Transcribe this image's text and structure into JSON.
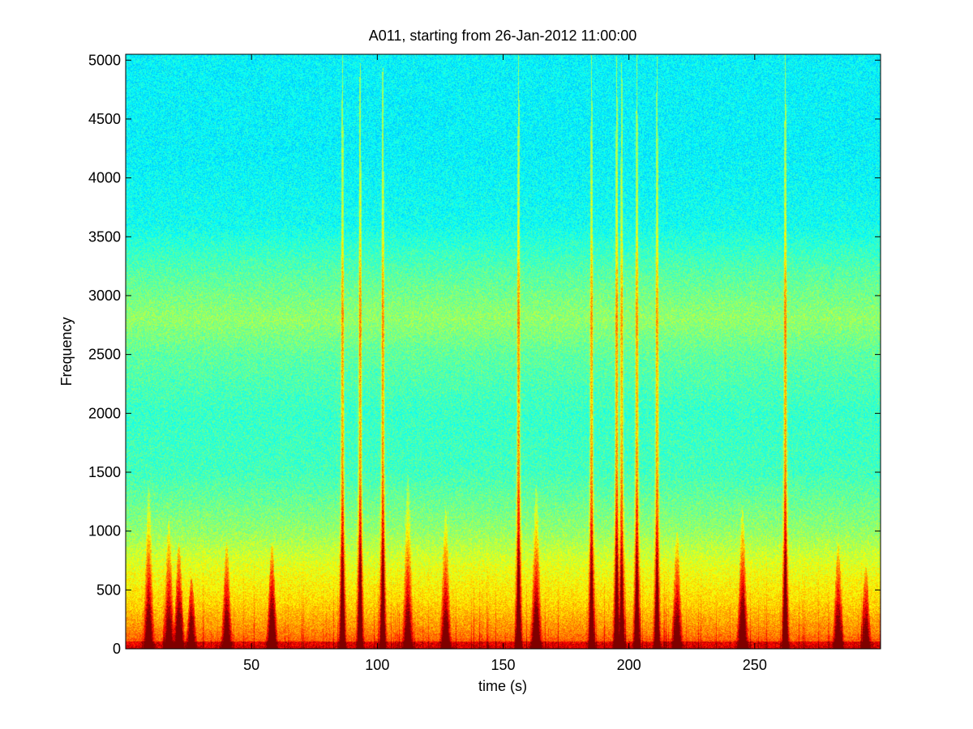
{
  "chart_data": {
    "type": "heatmap",
    "title": "A011, starting from 26-Jan-2012 11:00:00",
    "xlabel": "time (s)",
    "ylabel": "Frequency",
    "xlim": [
      0,
      300
    ],
    "ylim": [
      0,
      5050
    ],
    "x_ticks": [
      50,
      100,
      150,
      200,
      250
    ],
    "x_tick_labels": [
      "50",
      "100",
      "150",
      "200",
      "250"
    ],
    "y_ticks": [
      0,
      500,
      1000,
      1500,
      2000,
      2500,
      3000,
      3500,
      4000,
      4500,
      5000
    ],
    "y_tick_labels": [
      "0",
      "500",
      "1000",
      "1500",
      "2000",
      "2500",
      "3000",
      "3500",
      "4000",
      "4500",
      "5000"
    ],
    "colormap": [
      "#00007f",
      "#0000ff",
      "#007fff",
      "#00ffff",
      "#7fff7f",
      "#ffff00",
      "#ff7f00",
      "#ff0000",
      "#7f0000"
    ],
    "background_levels": [
      {
        "frequency": 0,
        "intensity": 0.82
      },
      {
        "frequency": 150,
        "intensity": 0.74
      },
      {
        "frequency": 400,
        "intensity": 0.66
      },
      {
        "frequency": 700,
        "intensity": 0.6
      },
      {
        "frequency": 1000,
        "intensity": 0.52
      },
      {
        "frequency": 1500,
        "intensity": 0.44
      },
      {
        "frequency": 2000,
        "intensity": 0.43
      },
      {
        "frequency": 2500,
        "intensity": 0.47
      },
      {
        "frequency": 2800,
        "intensity": 0.52
      },
      {
        "frequency": 3200,
        "intensity": 0.46
      },
      {
        "frequency": 3600,
        "intensity": 0.39
      },
      {
        "frequency": 4200,
        "intensity": 0.37
      },
      {
        "frequency": 5050,
        "intensity": 0.37
      }
    ],
    "events": [
      {
        "time": 9,
        "peak_frequency": 1400,
        "strength": 0.75
      },
      {
        "time": 17,
        "peak_frequency": 1100,
        "strength": 0.7
      },
      {
        "time": 21,
        "peak_frequency": 900,
        "strength": 0.8
      },
      {
        "time": 26,
        "peak_frequency": 600,
        "strength": 0.65
      },
      {
        "time": 40,
        "peak_frequency": 900,
        "strength": 0.72
      },
      {
        "time": 58,
        "peak_frequency": 900,
        "strength": 0.85
      },
      {
        "time": 86,
        "peak_frequency": 5050,
        "strength": 0.95
      },
      {
        "time": 93,
        "peak_frequency": 5050,
        "strength": 1.0
      },
      {
        "time": 102,
        "peak_frequency": 5050,
        "strength": 1.0
      },
      {
        "time": 112,
        "peak_frequency": 1500,
        "strength": 0.7
      },
      {
        "time": 127,
        "peak_frequency": 1200,
        "strength": 0.7
      },
      {
        "time": 156,
        "peak_frequency": 5050,
        "strength": 1.0
      },
      {
        "time": 163,
        "peak_frequency": 1400,
        "strength": 0.8
      },
      {
        "time": 185,
        "peak_frequency": 5050,
        "strength": 0.95
      },
      {
        "time": 195,
        "peak_frequency": 5050,
        "strength": 1.0
      },
      {
        "time": 197,
        "peak_frequency": 5050,
        "strength": 0.9
      },
      {
        "time": 203,
        "peak_frequency": 5050,
        "strength": 0.95
      },
      {
        "time": 211,
        "peak_frequency": 5050,
        "strength": 0.9
      },
      {
        "time": 219,
        "peak_frequency": 1000,
        "strength": 0.7
      },
      {
        "time": 245,
        "peak_frequency": 1200,
        "strength": 0.85
      },
      {
        "time": 262,
        "peak_frequency": 5050,
        "strength": 1.0
      },
      {
        "time": 283,
        "peak_frequency": 900,
        "strength": 0.7
      },
      {
        "time": 294,
        "peak_frequency": 700,
        "strength": 0.6
      }
    ],
    "grid": false,
    "legend": "none"
  }
}
